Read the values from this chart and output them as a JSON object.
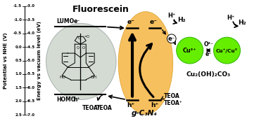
{
  "bg_color": "#ffffff",
  "title": "Fluorescein",
  "ellipse_color": "#f5a820",
  "ellipse_alpha": 0.75,
  "fluor_circle_color": "#a8b8a8",
  "cu_circle_color": "#66ee00",
  "y_axis_left_label": "Potential vs NHE (V)",
  "y_axis_right_label": "Energy vs vacuum level (eV)",
  "left_ticks": [
    "-1.5",
    "-1.0",
    "-0.5",
    "0.0",
    "0.5",
    "1.0",
    "1.5",
    "2.0",
    "2.5"
  ],
  "right_ticks": [
    "-3.0",
    "-3.5",
    "-4.0",
    "-4.5",
    "-5.0",
    "-5.5",
    "-6.0",
    "-6.5",
    "-7.0"
  ],
  "cn_label": "g-C₃N₄",
  "cu_compound_label": "Cu₂(OH)₂CO₃",
  "cu2_label": "Cu²⁺",
  "cu_mixed_label": "Cu⁺/Cu°"
}
